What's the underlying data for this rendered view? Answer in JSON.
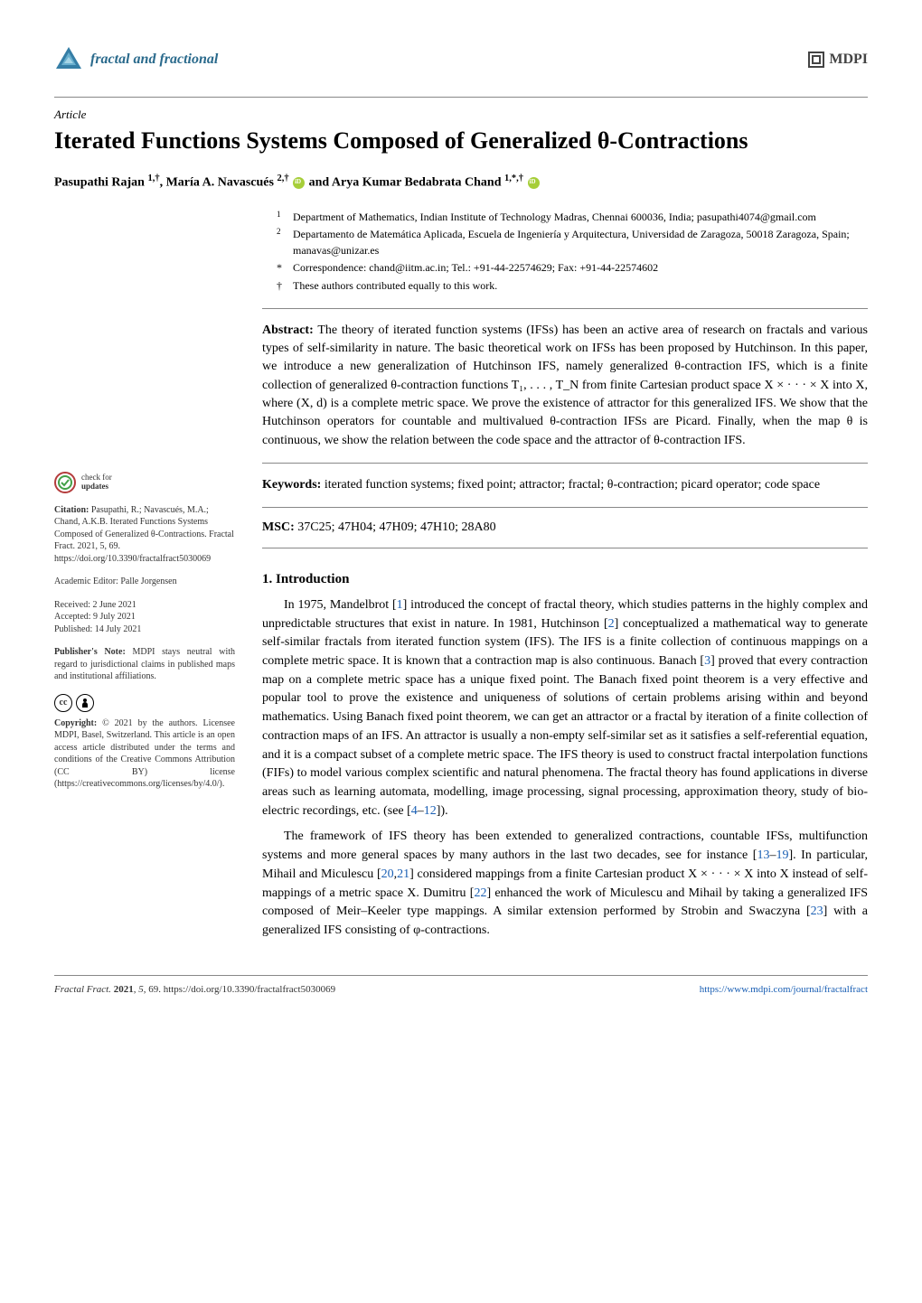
{
  "journal": {
    "name": "fractal and fractional",
    "logo_color": "#2a6a8c",
    "publisher": "MDPI"
  },
  "article": {
    "type": "Article",
    "title": "Iterated Functions Systems Composed of Generalized θ-Contractions",
    "authors_html": "Pasupathi Rajan <sup>1,†</sup>, María A. Navascués <sup>2,†</sup> <span class=\"orcid\"></span> and Arya Kumar Bedabrata Chand <sup>1,*,†</sup> <span class=\"orcid\"></span>"
  },
  "affiliations": [
    {
      "num": "1",
      "text": "Department of Mathematics, Indian Institute of Technology Madras, Chennai 600036, India; pasupathi4074@gmail.com"
    },
    {
      "num": "2",
      "text": "Departamento de Matemática Aplicada, Escuela de Ingeniería y Arquitectura, Universidad de Zaragoza, 50018 Zaragoza, Spain; manavas@unizar.es"
    }
  ],
  "correspondence": {
    "sym": "*",
    "text": "Correspondence: chand@iitm.ac.in; Tel.: +91-44-22574629; Fax: +91-44-22574602"
  },
  "contrib": {
    "sym": "†",
    "text": "These authors contributed equally to this work."
  },
  "abstract": {
    "label": "Abstract:",
    "text": "The theory of iterated function systems (IFSs) has been an active area of research on fractals and various types of self-similarity in nature. The basic theoretical work on IFSs has been proposed by Hutchinson. In this paper, we introduce a new generalization of Hutchinson IFS, namely generalized θ-contraction IFS, which is a finite collection of generalized θ-contraction functions T₁, . . . , T_N from finite Cartesian product space X × · · · × X into X, where (X, d) is a complete metric space. We prove the existence of attractor for this generalized IFS. We show that the Hutchinson operators for countable and multivalued θ-contraction IFSs are Picard. Finally, when the map θ is continuous, we show the relation between the code space and the attractor of θ-contraction IFS."
  },
  "keywords": {
    "label": "Keywords:",
    "text": "iterated function systems; fixed point; attractor; fractal; θ-contraction; picard operator; code space"
  },
  "msc": {
    "label": "MSC:",
    "text": "37C25; 47H04; 47H09; 47H10; 28A80"
  },
  "sidebar": {
    "check_updates_l1": "check for",
    "check_updates_l2": "updates",
    "citation_label": "Citation:",
    "citation_text": "Pasupathi, R.; Navascués, M.A.; Chand, A.K.B. Iterated Functions Systems Composed of Generalized θ-Contractions. Fractal Fract. 2021, 5, 69. https://doi.org/10.3390/fractalfract5030069",
    "editor_label": "Academic Editor:",
    "editor_text": "Palle Jorgensen",
    "dates": {
      "received": "Received: 2 June 2021",
      "accepted": "Accepted: 9 July 2021",
      "published": "Published: 14 July 2021"
    },
    "publisher_note_label": "Publisher's Note:",
    "publisher_note_text": "MDPI stays neutral with regard to jurisdictional claims in published maps and institutional affiliations.",
    "copyright_label": "Copyright:",
    "copyright_text": "© 2021 by the authors. Licensee MDPI, Basel, Switzerland. This article is an open access article distributed under the terms and conditions of the Creative Commons Attribution (CC BY) license (https://creativecommons.org/licenses/by/4.0/)."
  },
  "section": {
    "heading": "1. Introduction",
    "para1_html": "In 1975, Mandelbrot [<span class=\"ref-link\">1</span>] introduced the concept of fractal theory, which studies patterns in the highly complex and unpredictable structures that exist in nature. In 1981, Hutchinson [<span class=\"ref-link\">2</span>] conceptualized a mathematical way to generate self-similar fractals from iterated function system (IFS). The IFS is a finite collection of continuous mappings on a complete metric space. It is known that a contraction map is also continuous. Banach [<span class=\"ref-link\">3</span>] proved that every contraction map on a complete metric space has a unique fixed point. The Banach fixed point theorem is a very effective and popular tool to prove the existence and uniqueness of solutions of certain problems arising within and beyond mathematics. Using Banach fixed point theorem, we can get an attractor or a fractal by iteration of a finite collection of contraction maps of an IFS. An attractor is usually a non-empty self-similar set as it satisfies a self-referential equation, and it is a compact subset of a complete metric space. The IFS theory is used to construct fractal interpolation functions (FIFs) to model various complex scientific and natural phenomena. The fractal theory has found applications in diverse areas such as learning automata, modelling, image processing, signal processing, approximation theory, study of bio-electric recordings, etc. (see [<span class=\"ref-link\">4</span>–<span class=\"ref-link\">12</span>]).",
    "para2_html": "The framework of IFS theory has been extended to generalized contractions, countable IFSs, multifunction systems and more general spaces by many authors in the last two decades, see for instance [<span class=\"ref-link\">13</span>–<span class=\"ref-link\">19</span>]. In particular, Mihail and Miculescu [<span class=\"ref-link\">20</span>,<span class=\"ref-link\">21</span>] considered mappings from a finite Cartesian product X × · · · × X into X instead of self-mappings of a metric space X. Dumitru [<span class=\"ref-link\">22</span>] enhanced the work of Miculescu and Mihail by taking a generalized IFS composed of Meir–Keeler type mappings. A similar extension performed by Strobin and Swaczyna [<span class=\"ref-link\">23</span>] with a generalized IFS consisting of φ-contractions."
  },
  "footer": {
    "left_html": "<i>Fractal Fract.</i> <b>2021</b>, <i>5</i>, 69. https://doi.org/10.3390/fractalfract5030069",
    "right": "https://www.mdpi.com/journal/fractalfract"
  },
  "colors": {
    "link": "#1a5fb4",
    "logo": "#2a6a8c",
    "rule": "#888888",
    "text": "#000000",
    "bg": "#ffffff"
  }
}
